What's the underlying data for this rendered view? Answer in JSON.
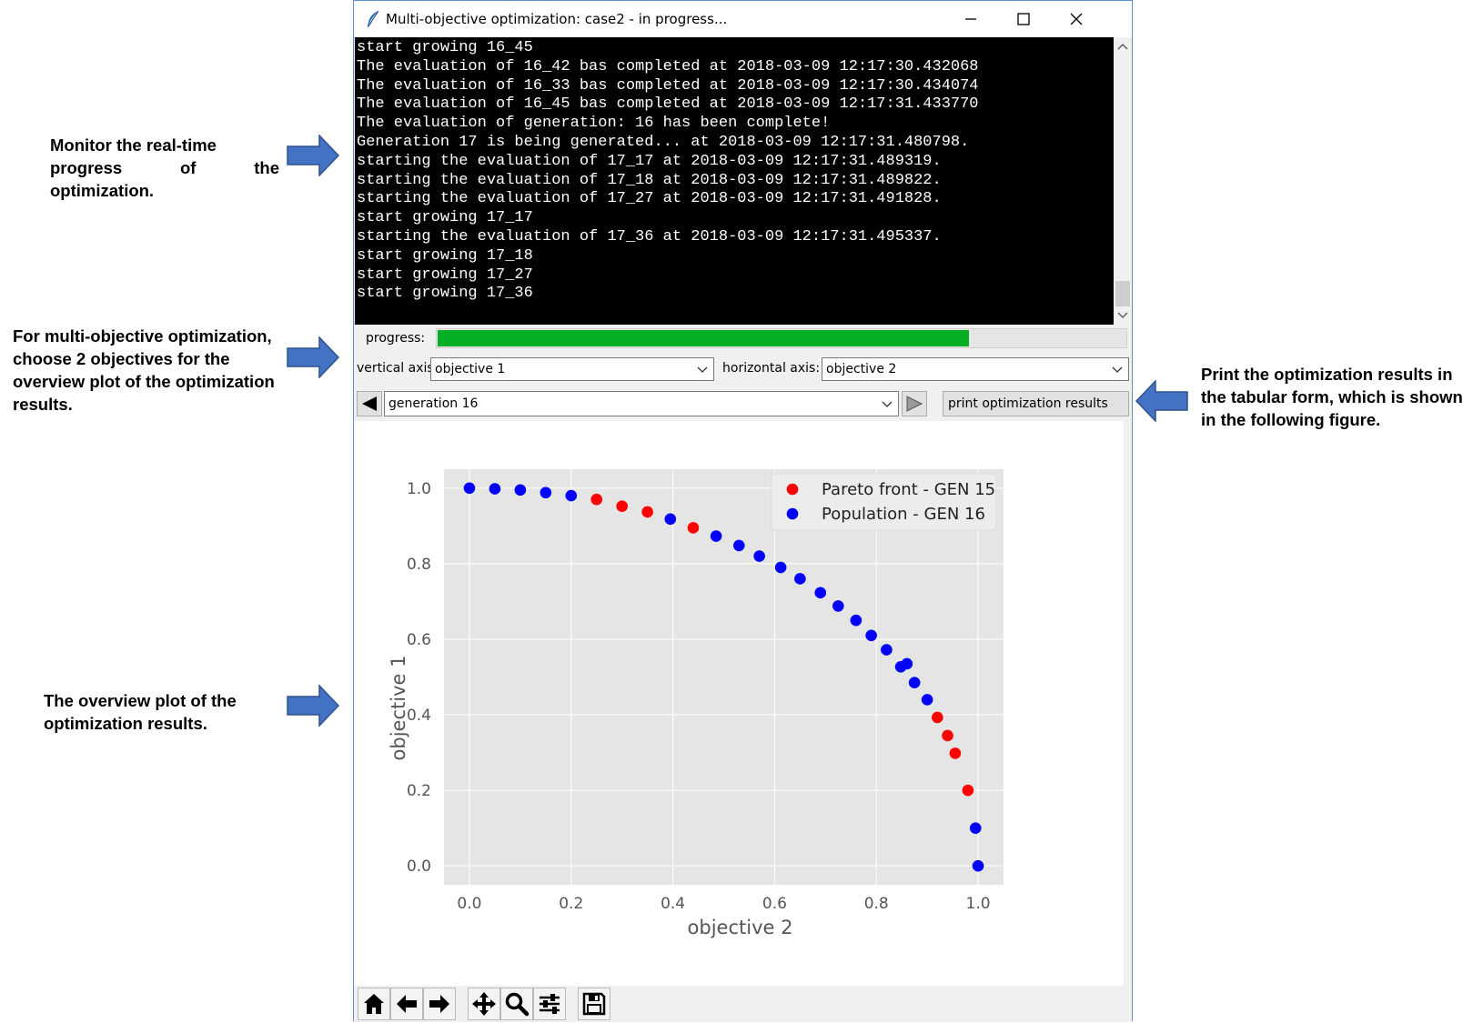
{
  "annotations": {
    "monitor": [
      "Monitor the real-time",
      "progress of the optimization."
    ],
    "choose": [
      "For multi-objective optimization,",
      "choose 2 objectives for the",
      "overview plot of the optimization",
      "results."
    ],
    "overview": [
      "The overview plot of the",
      "optimization results."
    ],
    "print": [
      "Print the optimization results in",
      "the tabular form, which is shown",
      "in the following figure."
    ]
  },
  "window": {
    "title": "Multi-objective optimization: case2 - in progress...",
    "icons": [
      "feather-icon",
      "minimize-icon",
      "maximize-icon",
      "close-icon"
    ]
  },
  "console": {
    "lines": [
      "start growing 16_45",
      "The evaluation of 16_42 bas completed at 2018-03-09 12:17:30.432068",
      "The evaluation of 16_33 bas completed at 2018-03-09 12:17:30.434074",
      "The evaluation of 16_45 bas completed at 2018-03-09 12:17:31.433770",
      "The evaluation of generation: 16 has been complete!",
      "Generation 17 is being generated... at 2018-03-09 12:17:31.480798.",
      "starting the evaluation of 17_17 at 2018-03-09 12:17:31.489319.",
      "starting the evaluation of 17_18 at 2018-03-09 12:17:31.489822.",
      "starting the evaluation of 17_27 at 2018-03-09 12:17:31.491828.",
      "start growing 17_17",
      "starting the evaluation of 17_36 at 2018-03-09 12:17:31.495337.",
      "start growing 17_18",
      "start growing 17_27",
      "start growing 17_36"
    ]
  },
  "progress": {
    "label": "progress:",
    "fraction": 0.77,
    "color": "#06b025"
  },
  "axes": {
    "vertical_label": "vertical axis:",
    "vertical_value": "objective 1",
    "horizontal_label": "horizontal axis:",
    "horizontal_value": "objective 2"
  },
  "generation": {
    "value": "generation 16",
    "print_button": "print optimization results",
    "icons": [
      "prev-icon",
      "next-icon"
    ]
  },
  "toolbar": {
    "icons": [
      "home-icon",
      "back-icon",
      "forward-icon",
      "pan-icon",
      "zoom-icon",
      "configure-icon",
      "save-icon"
    ]
  },
  "chart_data": {
    "type": "scatter",
    "xlabel": "objective 2",
    "ylabel": "objective 1",
    "xlim": [
      -0.05,
      1.05
    ],
    "ylim": [
      -0.05,
      1.05
    ],
    "xticks": [
      "0.0",
      "0.2",
      "0.4",
      "0.6",
      "0.8",
      "1.0"
    ],
    "yticks": [
      "0.0",
      "0.2",
      "0.4",
      "0.6",
      "0.8",
      "1.0"
    ],
    "grid": true,
    "legend_position": "top-right",
    "series": [
      {
        "name": "Pareto front - GEN 15",
        "color": "#ff0000",
        "points": [
          {
            "x": 0.25,
            "y": 0.97
          },
          {
            "x": 0.3,
            "y": 0.952
          },
          {
            "x": 0.35,
            "y": 0.937
          },
          {
            "x": 0.44,
            "y": 0.895
          },
          {
            "x": 0.92,
            "y": 0.393
          },
          {
            "x": 0.94,
            "y": 0.345
          },
          {
            "x": 0.955,
            "y": 0.298
          },
          {
            "x": 0.98,
            "y": 0.2
          }
        ]
      },
      {
        "name": "Population - GEN 16",
        "color": "#0000ff",
        "points": [
          {
            "x": 0.0,
            "y": 1.0
          },
          {
            "x": 0.05,
            "y": 0.998
          },
          {
            "x": 0.1,
            "y": 0.995
          },
          {
            "x": 0.15,
            "y": 0.988
          },
          {
            "x": 0.2,
            "y": 0.98
          },
          {
            "x": 0.395,
            "y": 0.918
          },
          {
            "x": 0.485,
            "y": 0.873
          },
          {
            "x": 0.53,
            "y": 0.848
          },
          {
            "x": 0.57,
            "y": 0.82
          },
          {
            "x": 0.612,
            "y": 0.79
          },
          {
            "x": 0.65,
            "y": 0.76
          },
          {
            "x": 0.69,
            "y": 0.723
          },
          {
            "x": 0.725,
            "y": 0.688
          },
          {
            "x": 0.76,
            "y": 0.65
          },
          {
            "x": 0.79,
            "y": 0.61
          },
          {
            "x": 0.82,
            "y": 0.572
          },
          {
            "x": 0.848,
            "y": 0.527
          },
          {
            "x": 0.86,
            "y": 0.535
          },
          {
            "x": 0.875,
            "y": 0.485
          },
          {
            "x": 0.9,
            "y": 0.44
          },
          {
            "x": 0.995,
            "y": 0.1
          },
          {
            "x": 1.0,
            "y": 0.0
          }
        ]
      }
    ]
  }
}
